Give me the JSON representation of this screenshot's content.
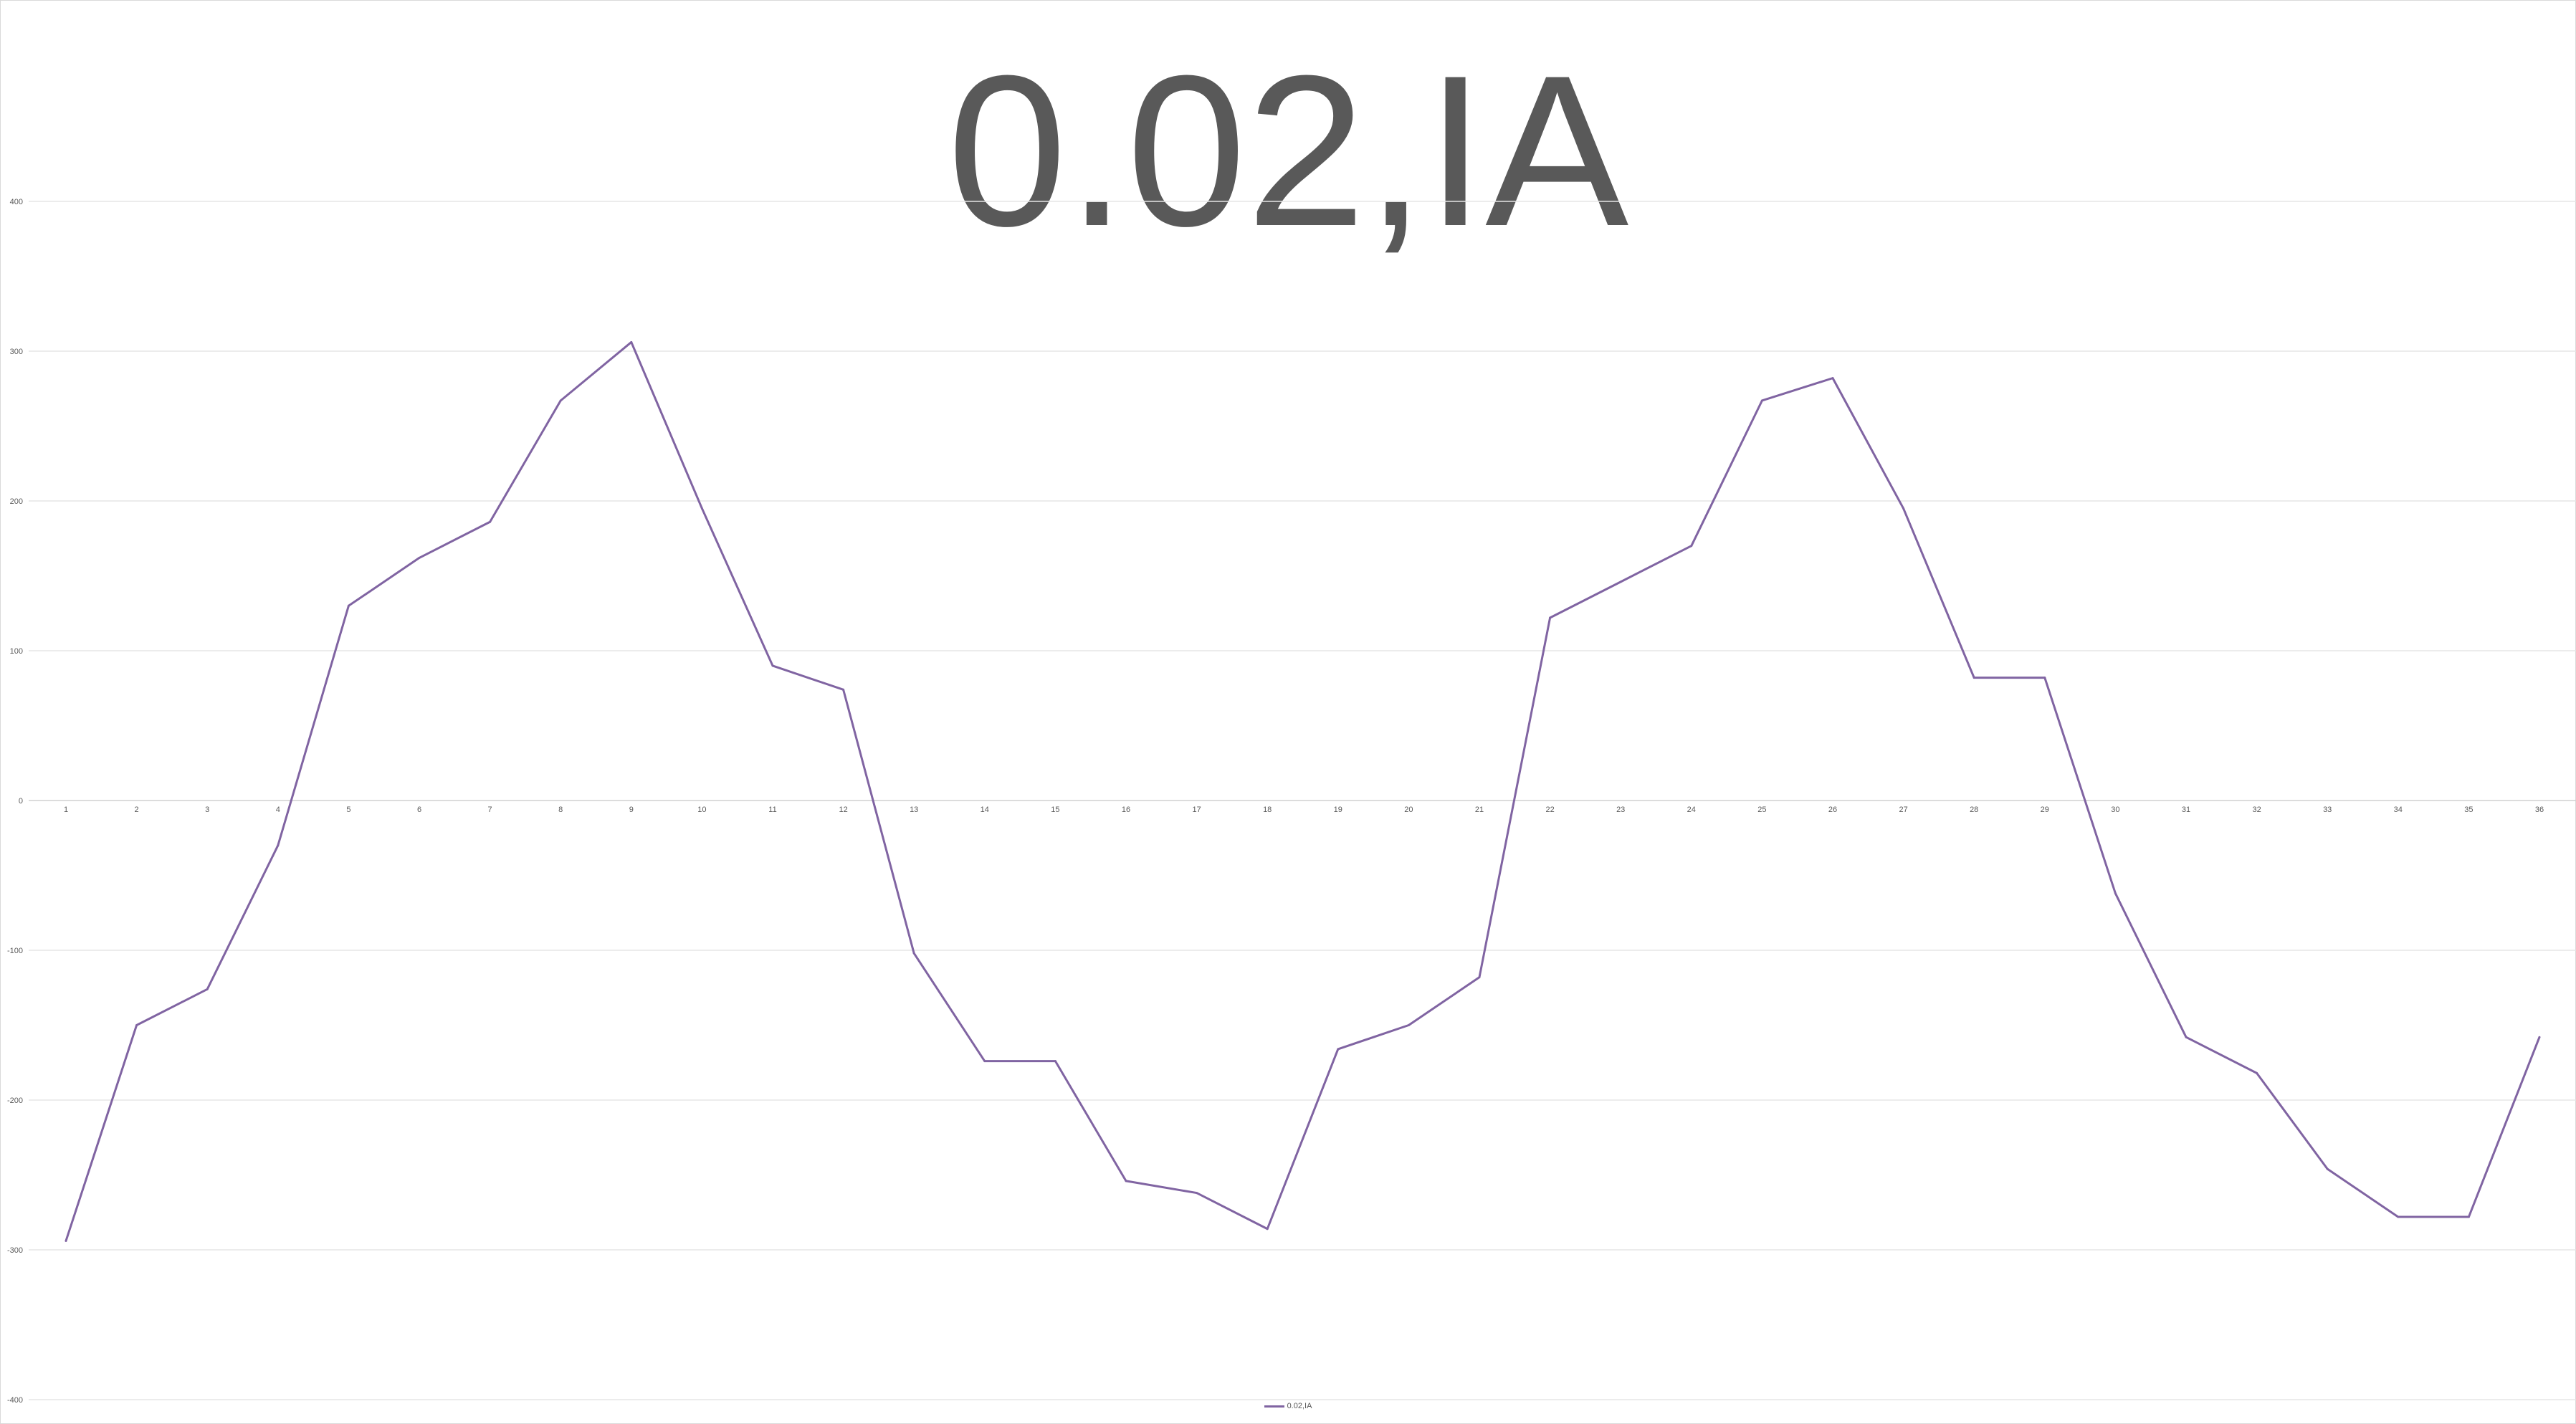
{
  "chart_data": {
    "type": "line",
    "title": "0.02,IA",
    "xlabel": "",
    "ylabel": "",
    "categories": [
      "1",
      "2",
      "3",
      "4",
      "5",
      "6",
      "7",
      "8",
      "9",
      "10",
      "11",
      "12",
      "13",
      "14",
      "15",
      "16",
      "17",
      "18",
      "19",
      "20",
      "21",
      "22",
      "23",
      "24",
      "25",
      "26",
      "27",
      "28",
      "29",
      "30",
      "31",
      "32",
      "33",
      "34",
      "35",
      "36"
    ],
    "series": [
      {
        "name": "0.02,IA",
        "color": "#8064a2",
        "values": [
          -294,
          -150,
          -126,
          -30,
          130,
          162,
          186,
          267,
          306,
          195,
          90,
          74,
          -102,
          -174,
          -174,
          -254,
          -262,
          -286,
          -166,
          -150,
          -118,
          122,
          146,
          170,
          267,
          282,
          195,
          82,
          82,
          -62,
          -158,
          -182,
          -246,
          -278,
          -278,
          -158
        ]
      }
    ],
    "ylim": [
      -400,
      400
    ],
    "yticks": [
      400,
      300,
      200,
      100,
      0,
      -100,
      -200,
      -300,
      -400
    ],
    "grid": true,
    "legend": "bottom"
  }
}
